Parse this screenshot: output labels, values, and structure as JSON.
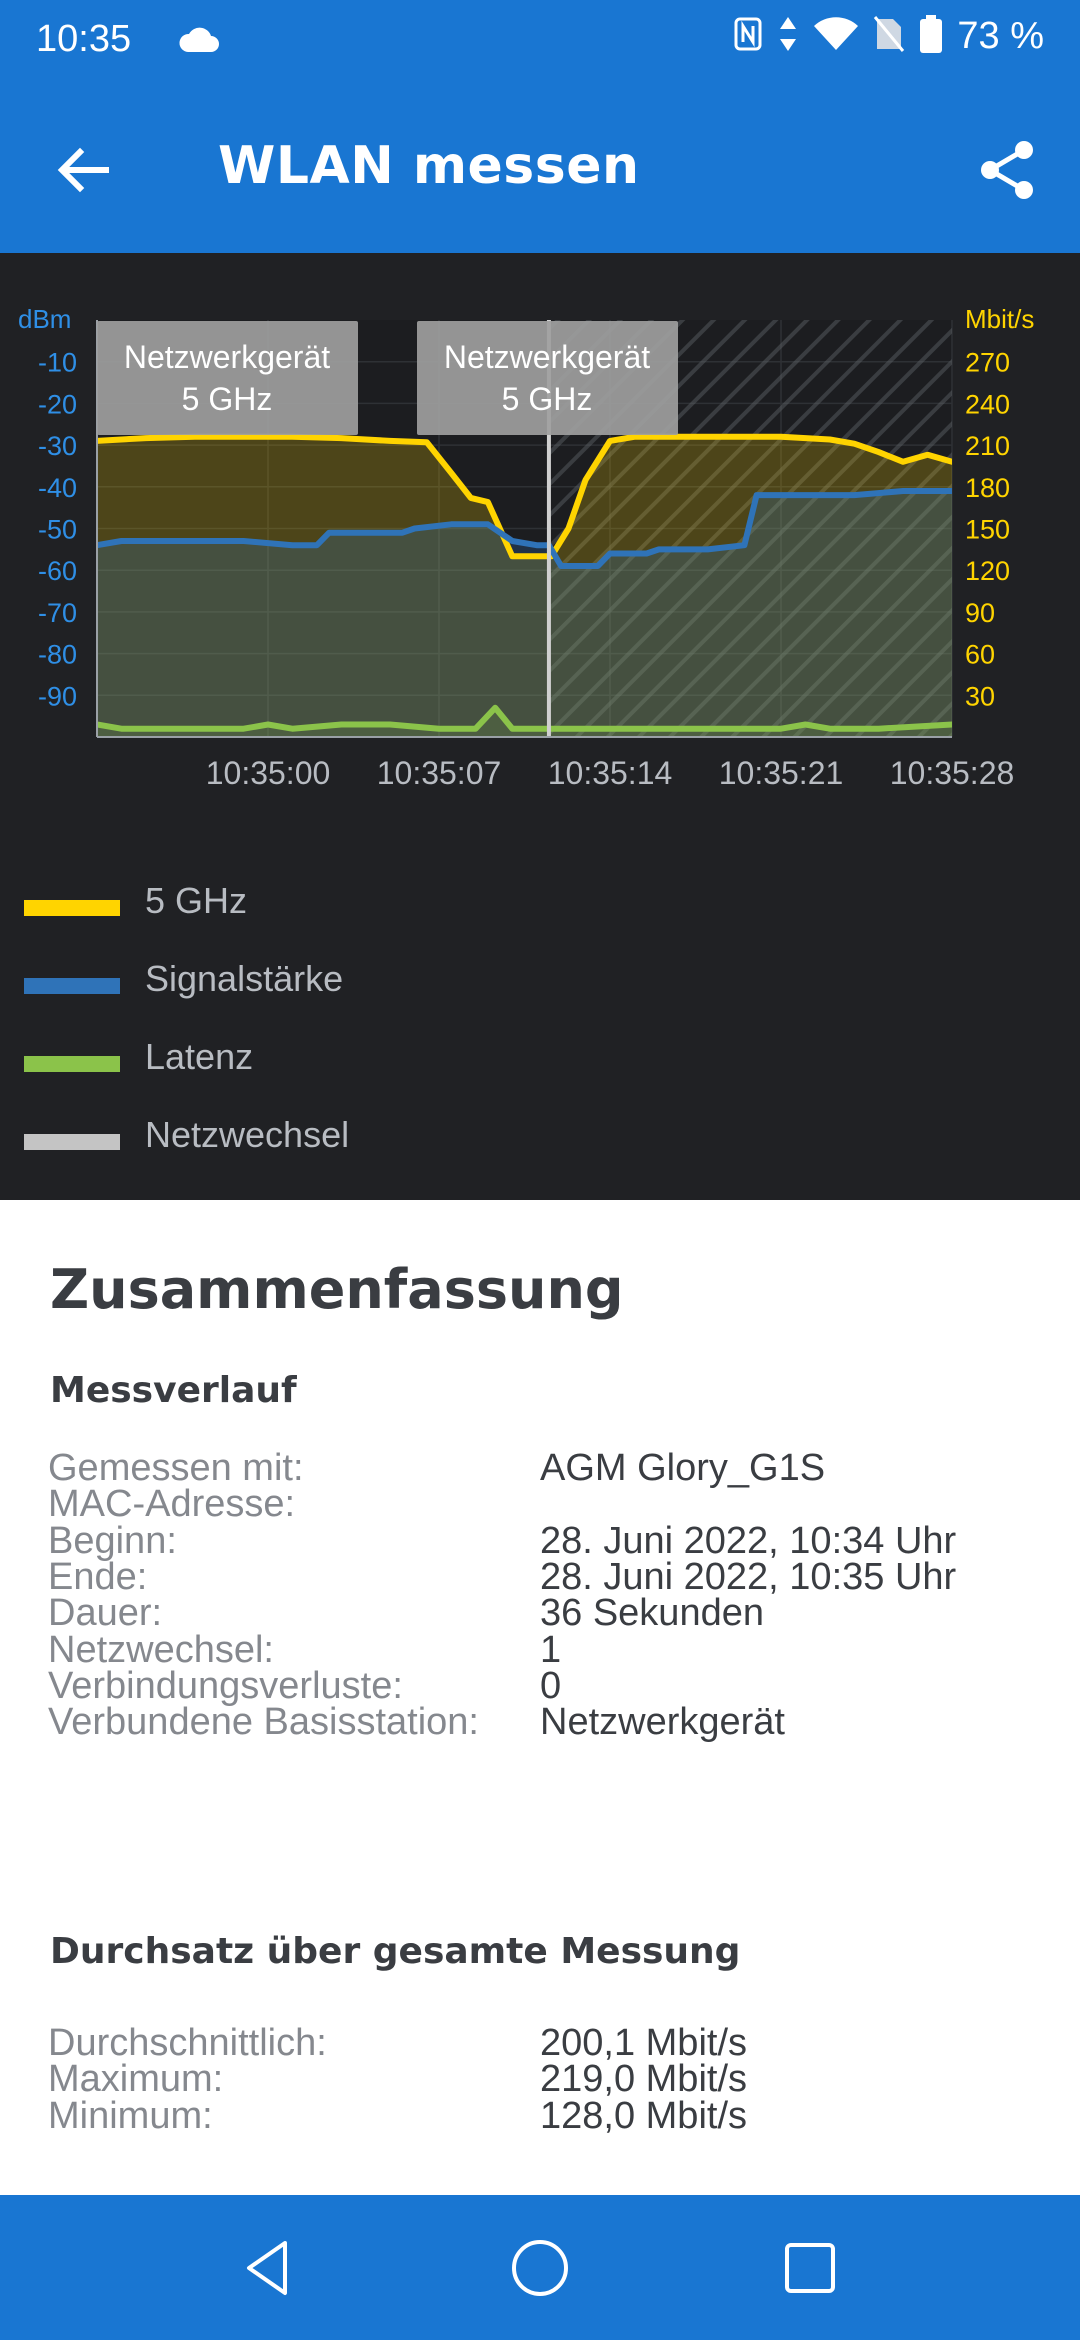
{
  "status_bar": {
    "time": "10:35",
    "battery": "73 %",
    "icons": [
      "cloud-icon",
      "nfc-icon",
      "data-arrows-icon",
      "wifi-icon",
      "no-sim-icon",
      "battery-icon"
    ]
  },
  "app_bar": {
    "title": "WLAN messen",
    "back_icon": "arrow-back-icon",
    "share_icon": "share-icon",
    "color": "#1976d2"
  },
  "chart_data": {
    "type": "line",
    "x_ticks": [
      "10:35:00",
      "10:35:07",
      "10:35:14",
      "10:35:21",
      "10:35:28"
    ],
    "y_left": {
      "label": "dBm",
      "ticks": [
        "-10",
        "-20",
        "-30",
        "-40",
        "-50",
        "-60",
        "-70",
        "-80",
        "-90"
      ],
      "range": [
        -100,
        0
      ]
    },
    "y_right": {
      "label": "Mbit/s",
      "ticks": [
        "270",
        "240",
        "210",
        "180",
        "150",
        "120",
        "90",
        "60",
        "30"
      ],
      "range": [
        0,
        300
      ]
    },
    "x_range_seconds": [
      0,
      35
    ],
    "tooltips": [
      {
        "line1": "Netzwerkgerät",
        "line2": "5 GHz"
      },
      {
        "line1": "Netzwerkgerät",
        "line2": "5 GHz"
      }
    ],
    "network_change_second": 18.5,
    "series": [
      {
        "name": "5 GHz",
        "color": "#ffd400",
        "axis": "right",
        "x": [
          0,
          2,
          4,
          6,
          8,
          10,
          12,
          13.5,
          14.5,
          15.3,
          16,
          17,
          18,
          18.6,
          19.3,
          20,
          21,
          22,
          24,
          26,
          28,
          30,
          31,
          32,
          33,
          34,
          35
        ],
        "y": [
          213,
          215,
          216,
          216,
          216,
          215,
          213,
          212,
          190,
          172,
          169,
          130,
          130,
          130,
          150,
          185,
          213,
          216,
          216,
          216,
          216,
          214,
          211,
          205,
          198,
          203,
          198
        ]
      },
      {
        "name": "Signalstärke",
        "color": "#2f73b8",
        "axis": "left",
        "x": [
          0,
          1,
          2,
          4,
          6,
          8,
          9,
          9.5,
          11,
          12.5,
          13,
          14.5,
          15,
          16,
          17,
          18,
          18.5,
          19,
          20.5,
          21,
          22.5,
          23,
          25,
          26.5,
          27,
          29,
          31,
          33,
          35
        ],
        "y": [
          -54,
          -53,
          -53,
          -53,
          -53,
          -54,
          -54,
          -51,
          -51,
          -51,
          -50,
          -49,
          -49,
          -49,
          -53,
          -54,
          -54,
          -59,
          -59,
          -56,
          -56,
          -55,
          -55,
          -54,
          -42,
          -42,
          -42,
          -41,
          -41
        ]
      },
      {
        "name": "Latenz",
        "color": "#8bc34a",
        "axis": "left",
        "x": [
          0,
          1,
          2,
          4,
          6,
          7,
          8,
          10,
          12,
          14,
          15.5,
          16.3,
          17,
          18,
          20,
          22,
          24,
          26,
          28,
          29,
          30,
          31,
          32,
          35
        ],
        "y": [
          -97,
          -98,
          -98,
          -98,
          -98,
          -97,
          -98,
          -97,
          -97,
          -98,
          -98,
          -93,
          -98,
          -98,
          -98,
          -98,
          -98,
          -98,
          -98,
          -97,
          -98,
          -98,
          -98,
          -97
        ]
      },
      {
        "name": "Netzwechsel",
        "color": "#c4c4c4"
      }
    ]
  },
  "legend": [
    {
      "label": "5 GHz",
      "color": "#ffd400"
    },
    {
      "label": "Signalstärke",
      "color": "#2f73b8"
    },
    {
      "label": "Latenz",
      "color": "#8bc34a"
    },
    {
      "label": "Netzwechsel",
      "color": "#c4c4c4"
    }
  ],
  "summary": {
    "title": "Zusammenfassung",
    "section1_title": "Messverlauf",
    "rows1": [
      {
        "key": "Gemessen mit:",
        "value": "AGM Glory_G1S"
      },
      {
        "key": "MAC-Adresse:",
        "value": ""
      },
      {
        "key": "Beginn:",
        "value": "28. Juni 2022, 10:34 Uhr"
      },
      {
        "key": "Ende:",
        "value": "28. Juni 2022, 10:35 Uhr"
      },
      {
        "key": "Dauer:",
        "value": "36 Sekunden"
      },
      {
        "key": "Netzwechsel:",
        "value": "1"
      },
      {
        "key": "Verbindungsverluste:",
        "value": "0"
      },
      {
        "key": "Verbundene Basisstation:",
        "value": "Netzwerkgerät"
      }
    ],
    "section2_title": "Durchsatz über gesamte Messung",
    "rows2": [
      {
        "key": "Durchschnittlich:",
        "value": "200,1 Mbit/s"
      },
      {
        "key": "Maximum:",
        "value": "219,0 Mbit/s"
      },
      {
        "key": "Minimum:",
        "value": "128,0 Mbit/s"
      }
    ]
  },
  "nav_bar": {
    "icons": [
      "back-triangle-icon",
      "home-circle-icon",
      "recents-square-icon"
    ]
  }
}
